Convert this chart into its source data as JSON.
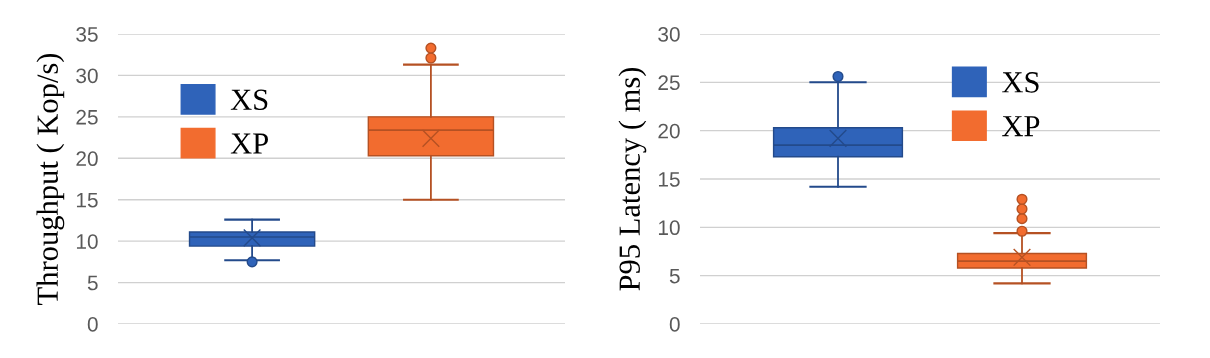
{
  "chart_data": [
    {
      "type": "box",
      "ylabel": "Throughput ( Kop/s)",
      "categories": [
        null
      ],
      "ylim": [
        0,
        35
      ],
      "yticks": [
        0,
        5,
        10,
        15,
        20,
        25,
        30,
        35
      ],
      "grid": "y",
      "legend": "top left",
      "tick_labels": "y",
      "series": [
        {
          "name": "XS",
          "color": "#2f63b9",
          "boxes": [
            {
              "low": 7.7,
              "q1": 9.4,
              "median": 10.5,
              "q3": 11.1,
              "high": 12.6,
              "mean": 10.4,
              "outliers": [
                7.5
              ]
            }
          ]
        },
        {
          "name": "XP",
          "color": "#f26c2f",
          "boxes": [
            {
              "low": 15,
              "q1": 20.3,
              "median": 23.4,
              "q3": 25,
              "high": 31.3,
              "mean": 22.4,
              "outliers": [
                32.1,
                33.3
              ]
            }
          ]
        }
      ]
    },
    {
      "type": "box",
      "ylabel": "P95 Latency ( ms)",
      "categories": [
        null
      ],
      "ylim": [
        0,
        30
      ],
      "yticks": [
        0,
        5,
        10,
        15,
        20,
        25,
        30
      ],
      "grid": "y",
      "legend": "top right",
      "tick_labels": "y",
      "series": [
        {
          "name": "XS",
          "color": "#2f63b9",
          "boxes": [
            {
              "low": 14.2,
              "q1": 17.3,
              "median": 18.5,
              "q3": 20.3,
              "high": 25,
              "mean": 19.2,
              "outliers": [
                25.6
              ]
            }
          ]
        },
        {
          "name": "XP",
          "color": "#f26c2f",
          "boxes": [
            {
              "low": 4.2,
              "q1": 5.8,
              "median": 6.5,
              "q3": 7.3,
              "high": 9.4,
              "mean": 6.9,
              "outliers": [
                9.6,
                10.9,
                11.9,
                12.9
              ]
            }
          ]
        }
      ]
    }
  ]
}
